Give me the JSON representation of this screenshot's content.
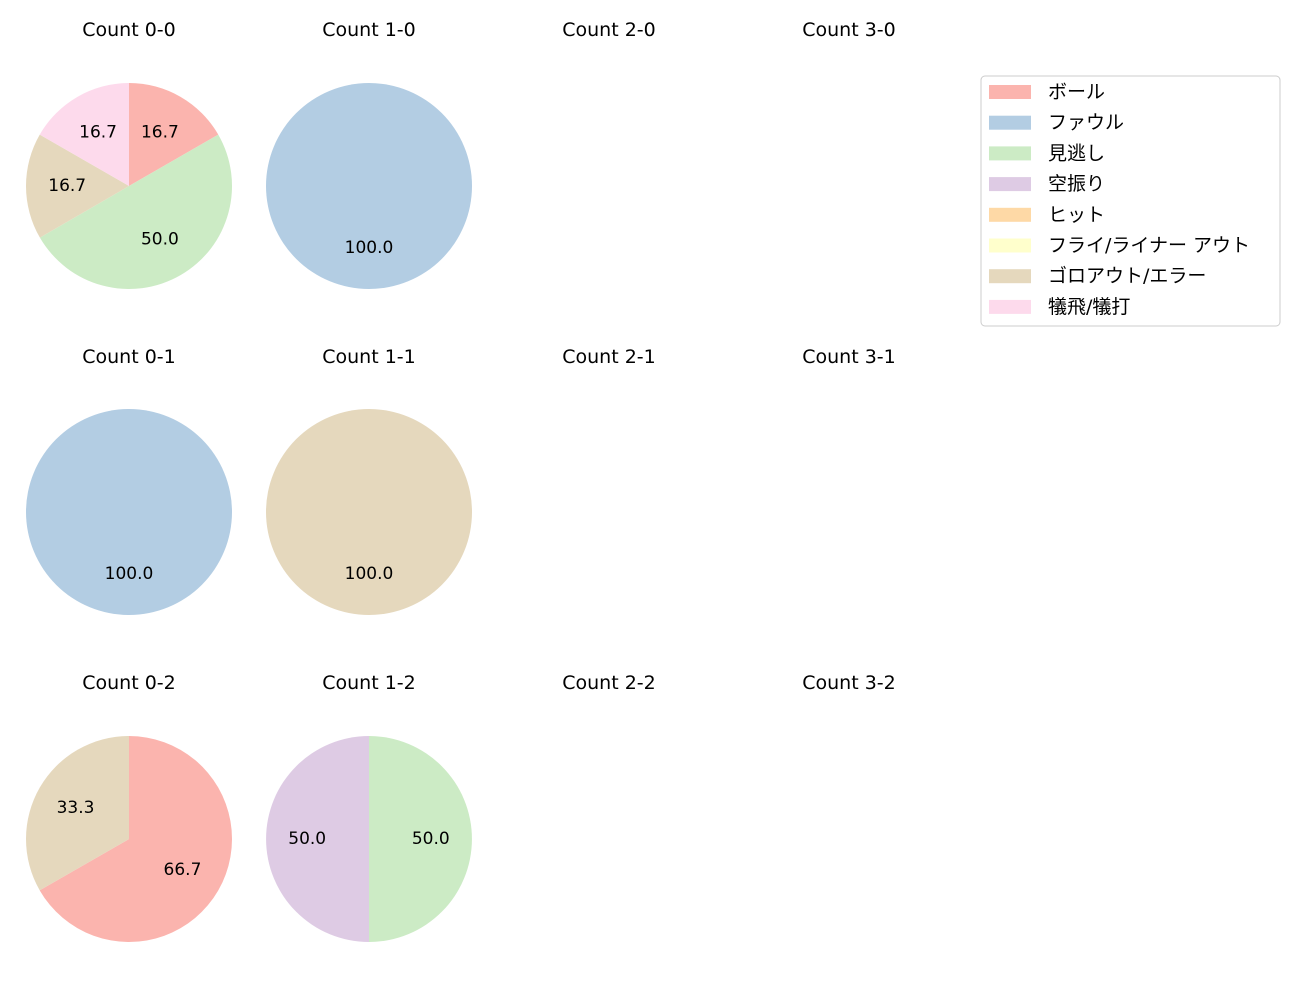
{
  "legend": {
    "items": [
      {
        "label": "ボール",
        "color": "#fbb4ae"
      },
      {
        "label": "ファウル",
        "color": "#b3cde3"
      },
      {
        "label": "見逃し",
        "color": "#ccebc5"
      },
      {
        "label": "空振り",
        "color": "#decbe4"
      },
      {
        "label": "ヒット",
        "color": "#fed9a6"
      },
      {
        "label": "フライ/ライナー アウト",
        "color": "#ffffcc"
      },
      {
        "label": "ゴロアウト/エラー",
        "color": "#e5d8bd"
      },
      {
        "label": "犠飛/犠打",
        "color": "#fddaec"
      }
    ]
  },
  "chart_data": [
    {
      "type": "pie",
      "title": "Count 0-0",
      "slices": [
        {
          "category": "ボール",
          "value": 16.7
        },
        {
          "category": "見逃し",
          "value": 50.0
        },
        {
          "category": "ゴロアウト/エラー",
          "value": 16.7
        },
        {
          "category": "犠飛/犠打",
          "value": 16.7
        }
      ]
    },
    {
      "type": "pie",
      "title": "Count 1-0",
      "slices": [
        {
          "category": "ファウル",
          "value": 100.0
        }
      ]
    },
    {
      "type": "pie",
      "title": "Count 2-0",
      "slices": []
    },
    {
      "type": "pie",
      "title": "Count 3-0",
      "slices": []
    },
    {
      "type": "pie",
      "title": "Count 0-1",
      "slices": [
        {
          "category": "ファウル",
          "value": 100.0
        }
      ]
    },
    {
      "type": "pie",
      "title": "Count 1-1",
      "slices": [
        {
          "category": "ゴロアウト/エラー",
          "value": 100.0
        }
      ]
    },
    {
      "type": "pie",
      "title": "Count 2-1",
      "slices": []
    },
    {
      "type": "pie",
      "title": "Count 3-1",
      "slices": []
    },
    {
      "type": "pie",
      "title": "Count 0-2",
      "slices": [
        {
          "category": "ボール",
          "value": 66.7
        },
        {
          "category": "ゴロアウト/エラー",
          "value": 33.3
        }
      ]
    },
    {
      "type": "pie",
      "title": "Count 1-2",
      "slices": [
        {
          "category": "見逃し",
          "value": 50.0
        },
        {
          "category": "空振り",
          "value": 50.0
        }
      ]
    },
    {
      "type": "pie",
      "title": "Count 2-2",
      "slices": []
    },
    {
      "type": "pie",
      "title": "Count 3-2",
      "slices": []
    }
  ]
}
